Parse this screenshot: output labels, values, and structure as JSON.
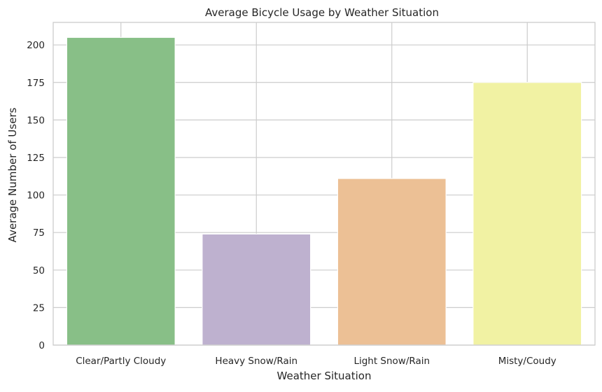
{
  "chart_data": {
    "type": "bar",
    "title": "Average Bicycle Usage by Weather Situation",
    "xlabel": "Weather Situation",
    "ylabel": "Average Number of Users",
    "categories": [
      "Clear/Partly Cloudy",
      "Heavy Snow/Rain",
      "Light Snow/Rain",
      "Misty/Coudy"
    ],
    "values": [
      205,
      74,
      111,
      175
    ],
    "colors": [
      "#88bf87",
      "#beb1cf",
      "#ecc095",
      "#f1f2a3"
    ],
    "ylim": [
      0,
      215
    ],
    "yticks": [
      0,
      25,
      50,
      75,
      100,
      125,
      150,
      175,
      200
    ],
    "grid": true,
    "grid_color": "#cccccc",
    "legend": "none"
  }
}
